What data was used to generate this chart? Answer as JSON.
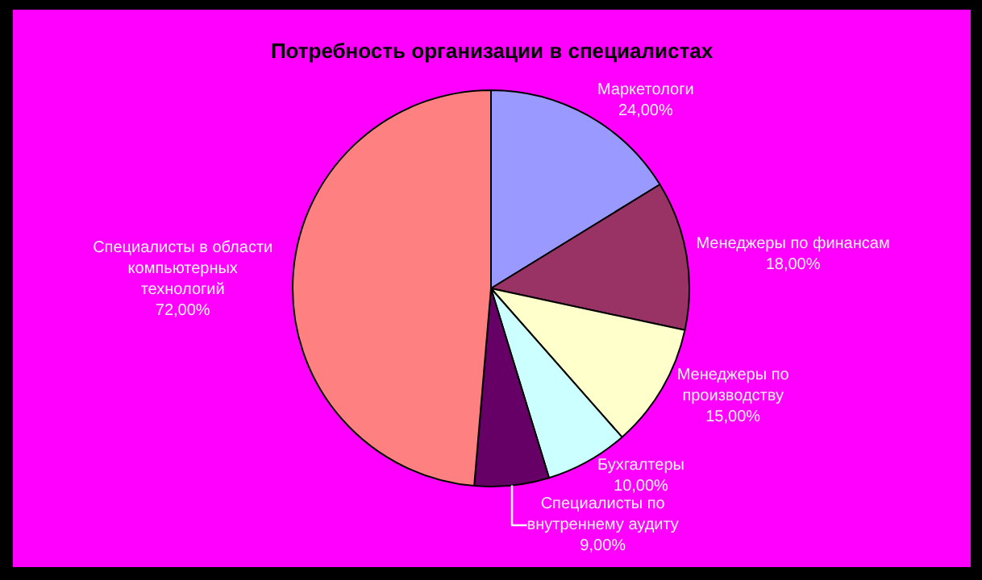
{
  "chart_data": {
    "type": "pie",
    "title": "Потребность организации в специалистах",
    "categories": [
      "Маркетологи",
      "Менеджеры по финансам",
      "Менеджеры по производству",
      "Бухгалтеры",
      "Специалисты по внутреннему аудиту",
      "Специалисты в области компьютерных технологий"
    ],
    "values": [
      24,
      18,
      15,
      10,
      9,
      72
    ],
    "value_labels": [
      "24,00%",
      "18,00%",
      "15,00%",
      "10,00%",
      "9,00%",
      "72,00%"
    ],
    "colors": [
      "#9999ff",
      "#993366",
      "#ffffcc",
      "#ccffff",
      "#660066",
      "#ff8080"
    ],
    "legend": false
  }
}
